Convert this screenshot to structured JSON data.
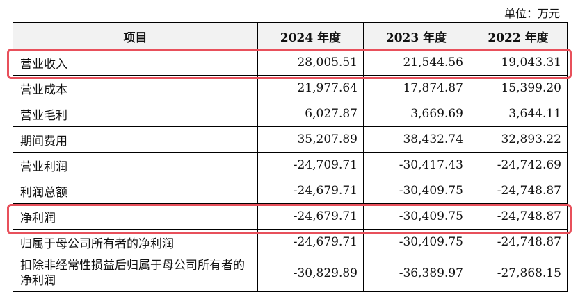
{
  "unit_label": "单位：万元",
  "headers": [
    "项目",
    "2024 年度",
    "2023 年度",
    "2022 年度"
  ],
  "rows": [
    {
      "label": "营业收入",
      "values": [
        "28,005.51",
        "21,544.56",
        "19,043.31"
      ]
    },
    {
      "label": "营业成本",
      "values": [
        "21,977.64",
        "17,874.87",
        "15,399.20"
      ]
    },
    {
      "label": "营业毛利",
      "values": [
        "6,027.87",
        "3,669.69",
        "3,644.11"
      ]
    },
    {
      "label": "期间费用",
      "values": [
        "35,207.89",
        "38,432.74",
        "32,893.22"
      ]
    },
    {
      "label": "营业利润",
      "values": [
        "-24,709.71",
        "-30,417.43",
        "-24,742.69"
      ]
    },
    {
      "label": "利润总额",
      "values": [
        "-24,679.71",
        "-30,409.75",
        "-24,748.87"
      ]
    },
    {
      "label": "净利润",
      "values": [
        "-24,679.71",
        "-30,409.75",
        "-24,748.87"
      ]
    },
    {
      "label": "归属于母公司所有者的净利润",
      "values": [
        "-24,679.71",
        "-30,409.75",
        "-24,748.87"
      ]
    },
    {
      "label": "扣除非经常性损益后归属于母公司所有者的净利润",
      "values": [
        "-30,829.89",
        "-36,389.97",
        "-27,868.15"
      ]
    }
  ],
  "highlight_color": "#e8505b"
}
